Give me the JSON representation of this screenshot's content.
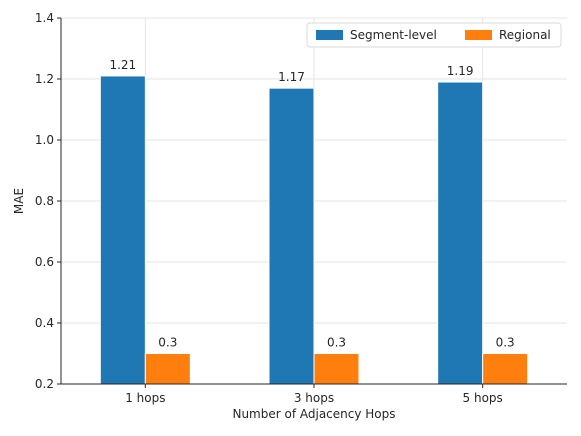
{
  "chart_data": {
    "type": "bar",
    "categories": [
      "1 hops",
      "3 hops",
      "5 hops"
    ],
    "series": [
      {
        "name": "Segment-level",
        "values": [
          1.21,
          1.17,
          1.19
        ],
        "labels": [
          "1.21",
          "1.17",
          "1.19"
        ],
        "color": "#1f77b4"
      },
      {
        "name": "Regional",
        "values": [
          0.3,
          0.3,
          0.3
        ],
        "labels": [
          "0.3",
          "0.3",
          "0.3"
        ],
        "color": "#ff7f0e"
      }
    ],
    "xlabel": "Number of Adjacency Hops",
    "ylabel": "MAE",
    "ylim": [
      0.2,
      1.4
    ],
    "yticks": [
      "0.2",
      "0.4",
      "0.6",
      "0.8",
      "1.0",
      "1.2",
      "1.4"
    ],
    "grid": true,
    "legend_position": "top-right"
  }
}
